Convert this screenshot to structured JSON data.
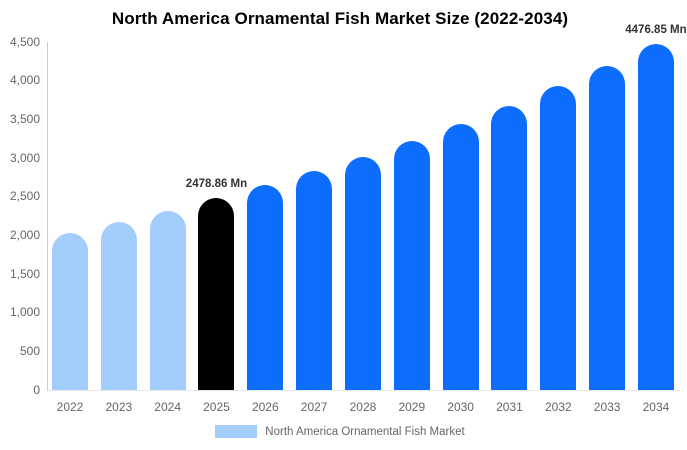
{
  "title": "North America Ornamental Fish Market Size (2022-2034)",
  "colors": {
    "light_blue": "#a3cdfa",
    "blue": "#0d6efd",
    "black": "#000000",
    "axis_line": "#cccccc",
    "baseline": "#e6e6e6",
    "tick_text": "#666666",
    "point_label_text": "#333333"
  },
  "legend": {
    "label": "North America Ornamental Fish Market",
    "swatch_color": "#a3cdfa"
  },
  "chart_data": {
    "type": "bar",
    "title": "North America Ornamental Fish Market Size (2022-2034)",
    "unit": "Mn",
    "categories": [
      "2022",
      "2023",
      "2024",
      "2025",
      "2026",
      "2027",
      "2028",
      "2029",
      "2030",
      "2031",
      "2032",
      "2033",
      "2034"
    ],
    "values": [
      2035.5,
      2173.7,
      2321.3,
      2478.86,
      2647.1,
      2826.8,
      3018.7,
      3223.7,
      3442.6,
      3676.3,
      3925.9,
      4192.4,
      4476.85
    ],
    "bar_colors": [
      "light_blue",
      "light_blue",
      "light_blue",
      "black",
      "blue",
      "blue",
      "blue",
      "blue",
      "blue",
      "blue",
      "blue",
      "blue",
      "blue"
    ],
    "point_labels": [
      "",
      "",
      "",
      "2478.86 Mn",
      "",
      "",
      "",
      "",
      "",
      "",
      "",
      "",
      "4476.85 Mn"
    ],
    "xlabel": "",
    "ylabel": "",
    "ylim": [
      0,
      4500
    ],
    "y_ticks": [
      {
        "value": 0,
        "label": "0"
      },
      {
        "value": 500,
        "label": "500"
      },
      {
        "value": 1000,
        "label": "1,000"
      },
      {
        "value": 1500,
        "label": "1,500"
      },
      {
        "value": 2000,
        "label": "2,000"
      },
      {
        "value": 2500,
        "label": "2,500"
      },
      {
        "value": 3000,
        "label": "3,000"
      },
      {
        "value": 3500,
        "label": "3,500"
      },
      {
        "value": 4000,
        "label": "4,000"
      },
      {
        "value": 4500,
        "label": "4,500"
      }
    ],
    "grid": false,
    "legend_position": "bottom"
  }
}
